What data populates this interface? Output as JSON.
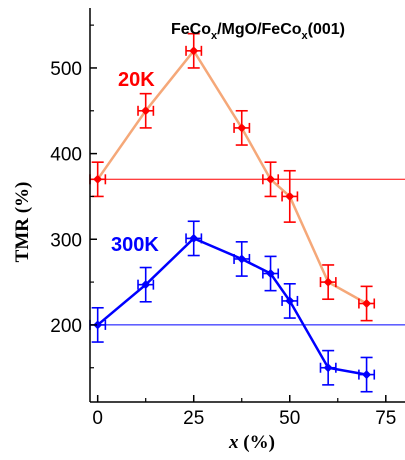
{
  "chart_data": {
    "type": "scatter",
    "title": {
      "parts": [
        {
          "text": "FeCo",
          "sub": false
        },
        {
          "text": "x",
          "sub": true
        },
        {
          "text": "/MgO/FeCo",
          "sub": false
        },
        {
          "text": "x",
          "sub": true
        },
        {
          "text": "(001)",
          "sub": false
        }
      ]
    },
    "xlabel": {
      "var": "x",
      "unit": " (%)"
    },
    "ylabel": "TMR (%)",
    "xlim": [
      -2,
      80
    ],
    "ylim": [
      110,
      570
    ],
    "xticks": [
      0,
      25,
      50,
      75
    ],
    "yticks": [
      200,
      300,
      400,
      500
    ],
    "grid": false,
    "series": [
      {
        "name": "20K",
        "color": "#ff0000",
        "line_color": "#f5a879",
        "reference_line": 370,
        "x": [
          0,
          12.5,
          25,
          37.5,
          45,
          50,
          60,
          70
        ],
        "y": [
          370,
          450,
          520,
          430,
          370,
          350,
          250,
          225
        ],
        "x_err": [
          2,
          2,
          2,
          2,
          2,
          2,
          2,
          2
        ],
        "y_err": [
          20,
          20,
          20,
          20,
          20,
          30,
          20,
          20
        ]
      },
      {
        "name": "300K",
        "color": "#0000ff",
        "line_color": "#0000ff",
        "reference_line": 200,
        "x": [
          0,
          12.5,
          25,
          37.5,
          45,
          50,
          60,
          70
        ],
        "y": [
          200,
          247,
          301,
          277,
          260,
          228,
          150,
          142
        ],
        "x_err": [
          2,
          2,
          2,
          2,
          2,
          2,
          2,
          2
        ],
        "y_err": [
          20,
          20,
          20,
          20,
          20,
          20,
          20,
          20
        ]
      }
    ]
  }
}
